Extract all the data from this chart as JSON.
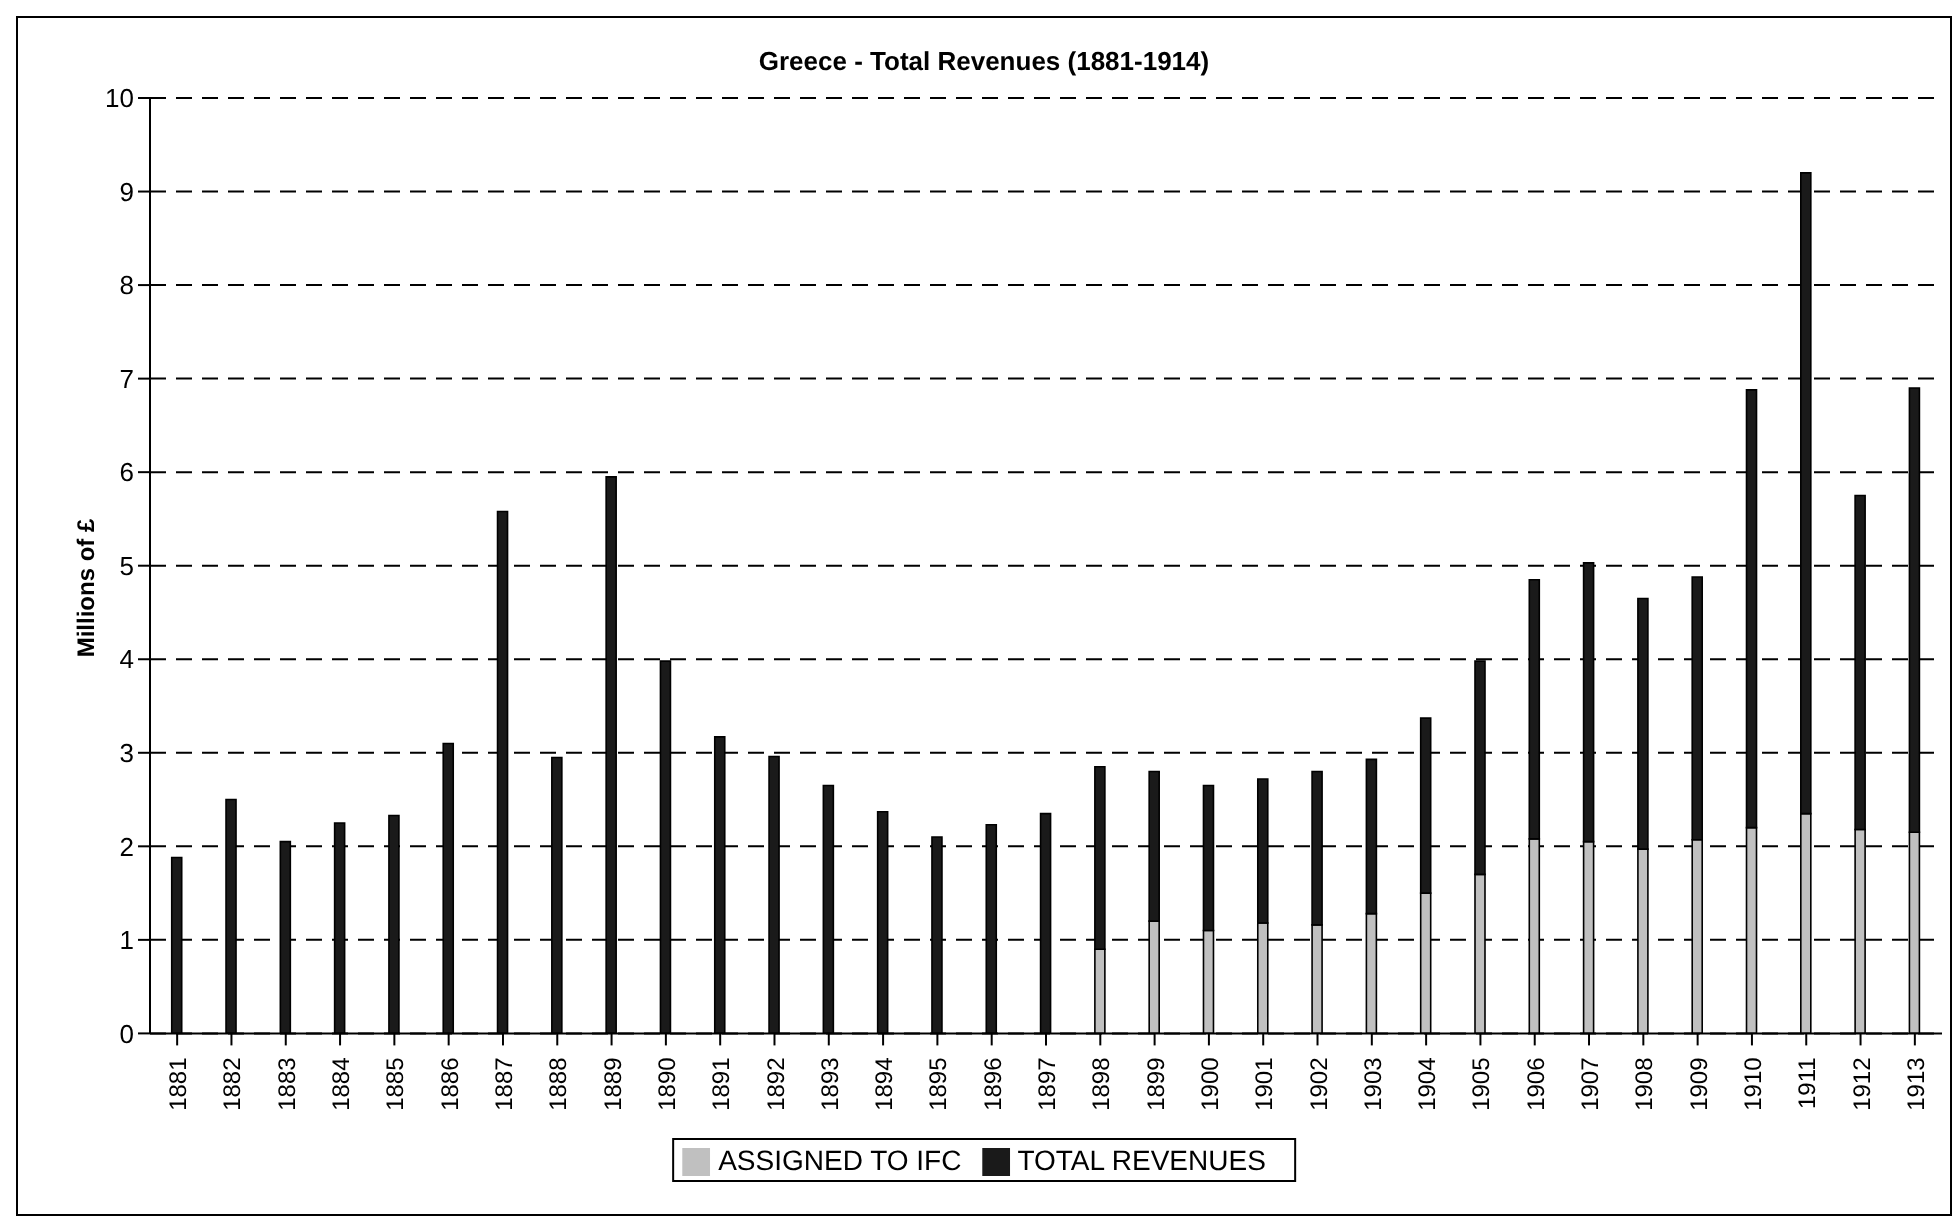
{
  "chart_data": {
    "type": "bar",
    "title": "Greece - Total Revenues (1881-1914)",
    "ylabel": "Millions of £",
    "stacked": true,
    "categories": [
      "1881",
      "1882",
      "1883",
      "1884",
      "1885",
      "1886",
      "1887",
      "1888",
      "1889",
      "1890",
      "1891",
      "1892",
      "1893",
      "1894",
      "1895",
      "1896",
      "1897",
      "1898",
      "1899",
      "1900",
      "1901",
      "1902",
      "1903",
      "1904",
      "1905",
      "1906",
      "1907",
      "1908",
      "1909",
      "1910",
      "1911",
      "1912",
      "1913"
    ],
    "series": [
      {
        "name": "ASSIGNED TO IFC",
        "color": "#c0c0c0",
        "values": [
          0,
          0,
          0,
          0,
          0,
          0,
          0,
          0,
          0,
          0,
          0,
          0,
          0,
          0,
          0,
          0,
          0,
          0.9,
          1.2,
          1.1,
          1.18,
          1.16,
          1.28,
          1.5,
          1.7,
          2.08,
          2.05,
          1.97,
          2.07,
          2.2,
          2.35,
          2.18,
          2.15
        ]
      },
      {
        "name": "TOTAL REVENUES",
        "color": "#1a1a1a",
        "values": [
          1.88,
          2.5,
          2.05,
          2.25,
          2.33,
          3.1,
          5.58,
          2.95,
          5.95,
          3.98,
          3.17,
          2.96,
          2.65,
          2.37,
          2.1,
          2.23,
          2.35,
          1.95,
          1.6,
          1.55,
          1.54,
          1.64,
          1.65,
          1.87,
          2.28,
          2.77,
          2.98,
          2.68,
          2.81,
          4.68,
          6.85,
          3.57,
          4.75
        ]
      }
    ],
    "ylim": [
      0,
      10
    ],
    "yticks": [
      0,
      1,
      2,
      3,
      4,
      5,
      6,
      7,
      8,
      9,
      10
    ],
    "grid": "y",
    "legend": "bottom"
  }
}
